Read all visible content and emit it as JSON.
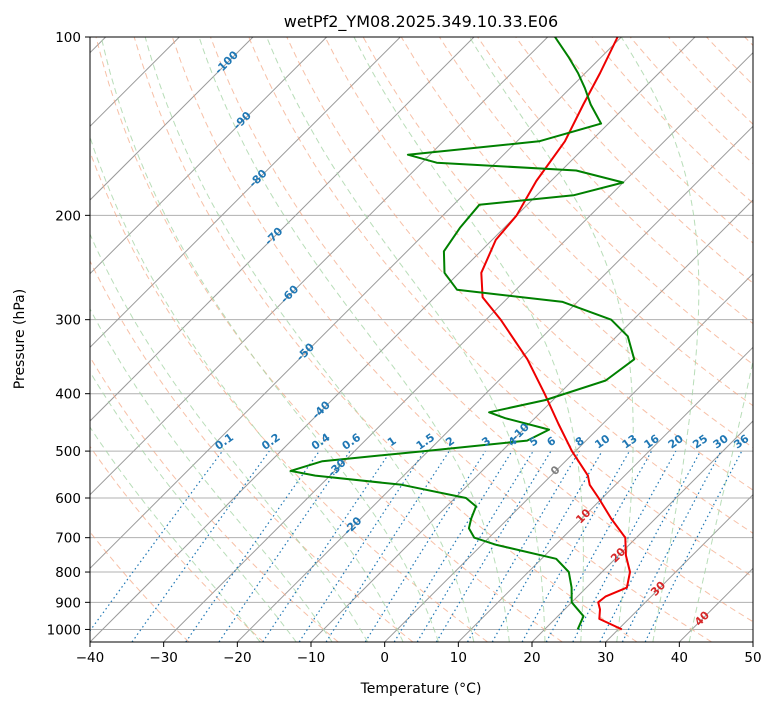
{
  "chart_data": {
    "type": "skew-t log-p",
    "title": "wetPf2_YM08.2025.349.10.33.E06",
    "xlabel": "Temperature (°C)",
    "ylabel": "Pressure (hPa)",
    "xlim": [
      -40,
      50
    ],
    "ylim": [
      1050,
      100
    ],
    "y_scale": "log",
    "grid": true,
    "x_ticks": [
      "−40",
      "−30",
      "−20",
      "−10",
      "0",
      "10",
      "20",
      "30",
      "40",
      "50"
    ],
    "x_tick_values": [
      -40,
      -30,
      -20,
      -10,
      0,
      10,
      20,
      30,
      40,
      50
    ],
    "y_ticks": [
      "100",
      "200",
      "300",
      "400",
      "500",
      "600",
      "700",
      "800",
      "900",
      "1000"
    ],
    "y_tick_values": [
      100,
      200,
      300,
      400,
      500,
      600,
      700,
      800,
      900,
      1000
    ],
    "colors": {
      "temperature": "#ee0000",
      "dewpoint": "#008000",
      "isotherm": "#9a9a9a",
      "dry_adiabat": "#f4a582",
      "moist_adiabat": "#a6d5a6",
      "mixing_ratio": "#1f77b4",
      "isotherm_label": "#1f77b4",
      "zero_label": "#808080",
      "positive_label": "#d62728"
    },
    "isotherm_labels": [
      {
        "text": "-100",
        "t": -100
      },
      {
        "text": "-90",
        "t": -90
      },
      {
        "text": "-80",
        "t": -80
      },
      {
        "text": "-70",
        "t": -70
      },
      {
        "text": "-60",
        "t": -60
      },
      {
        "text": "-50",
        "t": -50
      },
      {
        "text": "-40",
        "t": -40
      },
      {
        "text": "-30",
        "t": -30
      },
      {
        "text": "-20",
        "t": -20
      },
      {
        "text": "-10",
        "t": -10
      },
      {
        "text": "0",
        "t": 0
      },
      {
        "text": "10",
        "t": 10
      },
      {
        "text": "20",
        "t": 20
      },
      {
        "text": "30",
        "t": 30
      },
      {
        "text": "40",
        "t": 40
      }
    ],
    "mixing_ratio_labels": [
      "0.1",
      "0.2",
      "0.4",
      "0.6",
      "1",
      "1.5",
      "2",
      "3",
      "4",
      "5",
      "6",
      "8",
      "10",
      "13",
      "16",
      "20",
      "25",
      "30",
      "36"
    ],
    "mixing_ratio_values": [
      0.1,
      0.2,
      0.4,
      0.6,
      1,
      1.5,
      2,
      3,
      4,
      5,
      6,
      8,
      10,
      13,
      16,
      20,
      25,
      30,
      36
    ],
    "series": [
      {
        "name": "Temperature",
        "points": [
          [
            1000,
            30.5
          ],
          [
            960,
            26.0
          ],
          [
            925,
            24.8
          ],
          [
            900,
            23.6
          ],
          [
            880,
            23.8
          ],
          [
            850,
            25.5
          ],
          [
            800,
            23.8
          ],
          [
            750,
            21.0
          ],
          [
            700,
            18.5
          ],
          [
            650,
            14.0
          ],
          [
            600,
            9.5
          ],
          [
            570,
            6.5
          ],
          [
            550,
            5.0
          ],
          [
            500,
            -0.5
          ],
          [
            450,
            -6.0
          ],
          [
            400,
            -12.0
          ],
          [
            350,
            -19.0
          ],
          [
            300,
            -28.0
          ],
          [
            275,
            -33.5
          ],
          [
            250,
            -37.0
          ],
          [
            220,
            -39.5
          ],
          [
            200,
            -40.0
          ],
          [
            175,
            -42.0
          ],
          [
            150,
            -43.5
          ],
          [
            130,
            -46.0
          ],
          [
            115,
            -48.0
          ],
          [
            100,
            -50.5
          ]
        ]
      },
      {
        "name": "Dewpoint",
        "points": [
          [
            1000,
            24.5
          ],
          [
            950,
            23.5
          ],
          [
            900,
            20.0
          ],
          [
            850,
            18.0
          ],
          [
            800,
            15.5
          ],
          [
            760,
            12.0
          ],
          [
            720,
            2.0
          ],
          [
            700,
            -2.0
          ],
          [
            675,
            -4.0
          ],
          [
            650,
            -5.0
          ],
          [
            620,
            -6.0
          ],
          [
            600,
            -8.5
          ],
          [
            570,
            -19.0
          ],
          [
            550,
            -32.0
          ],
          [
            540,
            -36.0
          ],
          [
            520,
            -33.0
          ],
          [
            500,
            -20.5
          ],
          [
            480,
            -8.0
          ],
          [
            460,
            -6.5
          ],
          [
            440,
            -14.0
          ],
          [
            430,
            -17.0
          ],
          [
            410,
            -11.0
          ],
          [
            380,
            -5.5
          ],
          [
            350,
            -4.5
          ],
          [
            320,
            -8.5
          ],
          [
            300,
            -13.0
          ],
          [
            280,
            -22.0
          ],
          [
            267,
            -38.0
          ],
          [
            250,
            -42.0
          ],
          [
            230,
            -45.0
          ],
          [
            210,
            -46.0
          ],
          [
            192,
            -46.5
          ],
          [
            185,
            -35.0
          ],
          [
            176,
            -30.0
          ],
          [
            168,
            -38.0
          ],
          [
            163,
            -58.0
          ],
          [
            158,
            -63.0
          ],
          [
            150,
            -47.0
          ],
          [
            140,
            -41.0
          ],
          [
            130,
            -45.0
          ],
          [
            122,
            -48.0
          ],
          [
            115,
            -51.0
          ],
          [
            108,
            -54.5
          ],
          [
            100,
            -59.0
          ]
        ]
      }
    ]
  }
}
